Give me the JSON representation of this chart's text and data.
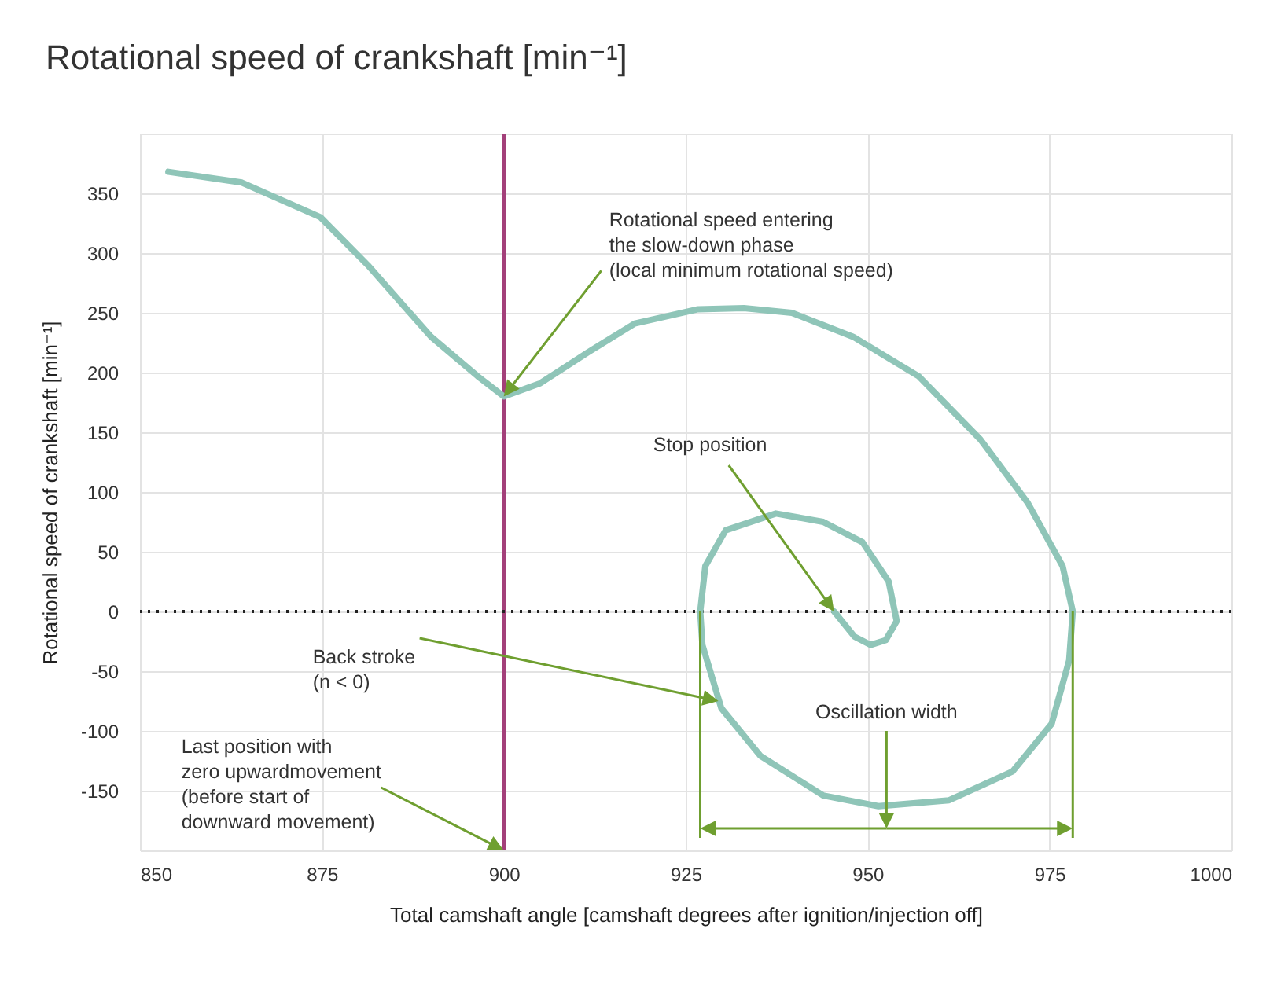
{
  "chart_data": {
    "type": "line",
    "title": "Rotational speed of crankshaft [min⁻¹]",
    "xlabel": "Total camshaft angle [camshaft degrees after ignition/injection off]",
    "ylabel": "Rotational speed of crankshaft [min⁻¹]",
    "xlim": [
      850,
      1000
    ],
    "xticks": [
      850,
      875,
      900,
      925,
      950,
      975,
      1000
    ],
    "ylim": [
      -200,
      400
    ],
    "yticks": [
      {
        "value": -200,
        "label": null
      },
      -150,
      -100,
      -50,
      0,
      50,
      100,
      150,
      200,
      250,
      300,
      350,
      {
        "value": 400,
        "label": null
      }
    ],
    "grid": true,
    "marker": "none",
    "line_style": "solid",
    "series": [
      {
        "color": "#8fc5b8",
        "x": [
          853.9,
          864,
          874.8,
          881.3,
          890,
          896.4,
          900,
          905,
          911.6,
          918,
          926.7,
          933,
          939.6,
          948,
          957,
          965.5,
          972,
          976.8,
          978.2,
          977.7,
          975.3,
          969.9,
          961.2,
          951.5,
          943.9,
          935.3,
          929.9,
          927.3,
          927,
          927.7,
          930.5,
          937.4,
          943.9,
          949.3,
          952.9,
          954,
          952.5,
          950.4,
          948.2,
          945.4
        ],
        "values": [
          368,
          359,
          330,
          290,
          230,
          197,
          180,
          191,
          217,
          241,
          253,
          254,
          250,
          230,
          197,
          144,
          91,
          38,
          0,
          -41,
          -94,
          -134,
          -158,
          -163,
          -154,
          -121,
          -81,
          -28,
          0,
          38,
          68,
          82,
          75,
          58,
          25,
          -8,
          -24,
          -28,
          -21,
          0
        ]
      }
    ],
    "ref_lines": [
      {
        "axis": "x",
        "value": 900,
        "color": "#a3407a",
        "line_style": "solid"
      },
      {
        "axis": "y",
        "value": 0,
        "color": "#222222",
        "line_style": "dotted"
      }
    ],
    "annotations": [
      {
        "text": "Rotational speed entering\nthe slow-down phase\n(local minimum rotational speed)",
        "x": 900,
        "y": 180
      },
      {
        "text": "Stop position",
        "x": 945.4,
        "y": 0
      },
      {
        "text": "Back stroke\n(n < 0)",
        "x": 929.5,
        "y": -75
      },
      "Oscillation width",
      {
        "text": "Last position with\nzero upwardmovement\n(before start of\ndownward movement)",
        "x": 900,
        "y": -200
      }
    ]
  }
}
